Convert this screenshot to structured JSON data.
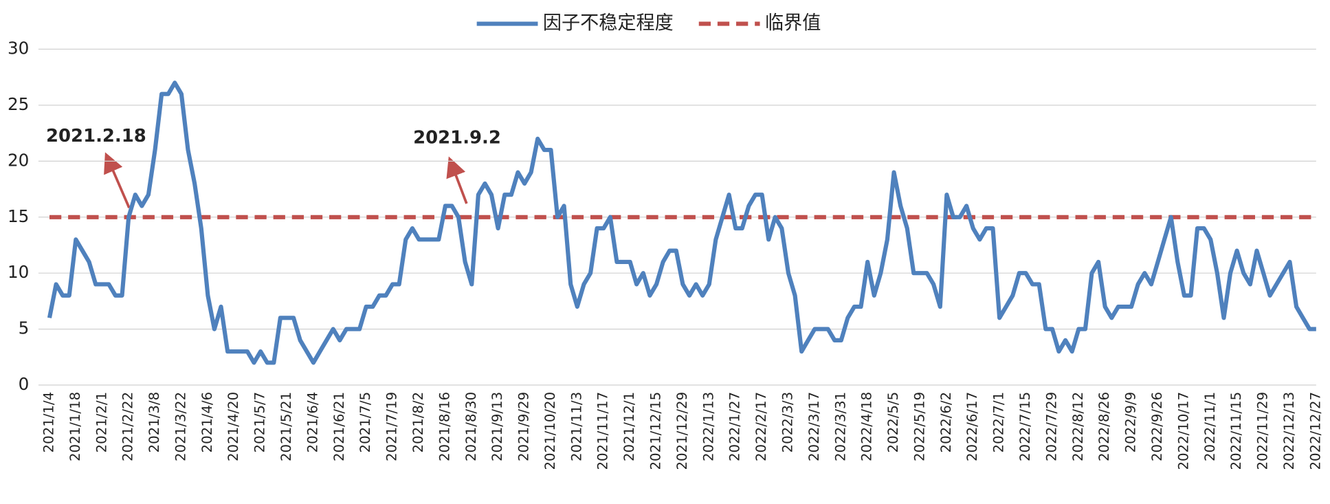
{
  "chart_data": {
    "type": "line",
    "categories": [
      "2021/1/4",
      null,
      null,
      null,
      "2021/1/18",
      null,
      null,
      null,
      "2021/2/1",
      null,
      null,
      null,
      "2021/2/22",
      null,
      null,
      null,
      "2021/3/8",
      null,
      null,
      null,
      "2021/3/22",
      null,
      null,
      null,
      "2021/4/6",
      null,
      null,
      null,
      "2021/4/20",
      null,
      null,
      null,
      "2021/5/7",
      null,
      null,
      null,
      "2021/5/21",
      null,
      null,
      null,
      "2021/6/4",
      null,
      null,
      null,
      "2021/6/21",
      null,
      null,
      null,
      "2021/7/5",
      null,
      null,
      null,
      "2021/7/19",
      null,
      null,
      null,
      "2021/8/2",
      null,
      null,
      null,
      "2021/8/16",
      null,
      null,
      null,
      "2021/8/30",
      null,
      null,
      null,
      "2021/9/13",
      null,
      null,
      null,
      "2021/9/29",
      null,
      null,
      null,
      "2021/10/20",
      null,
      null,
      null,
      "2021/11/3",
      null,
      null,
      null,
      "2021/11/17",
      null,
      null,
      null,
      "2021/12/1",
      null,
      null,
      null,
      "2021/12/15",
      null,
      null,
      null,
      "2021/12/29",
      null,
      null,
      null,
      "2022/1/13",
      null,
      null,
      null,
      "2022/1/27",
      null,
      null,
      null,
      "2022/2/17",
      null,
      null,
      null,
      "2022/3/3",
      null,
      null,
      null,
      "2022/3/17",
      null,
      null,
      null,
      "2022/3/31",
      null,
      null,
      null,
      "2022/4/18",
      null,
      null,
      null,
      "2022/5/5",
      null,
      null,
      null,
      "2022/5/19",
      null,
      null,
      null,
      "2022/6/2",
      null,
      null,
      null,
      "2022/6/17",
      null,
      null,
      null,
      "2022/7/1",
      null,
      null,
      null,
      "2022/7/15",
      null,
      null,
      null,
      "2022/7/29",
      null,
      null,
      null,
      "2022/8/12",
      null,
      null,
      null,
      "2022/8/26",
      null,
      null,
      null,
      "2022/9/9",
      null,
      null,
      null,
      "2022/9/26",
      null,
      null,
      null,
      "2022/10/17",
      null,
      null,
      null,
      "2022/11/1",
      null,
      null,
      null,
      "2022/11/15",
      null,
      null,
      null,
      "2022/11/29",
      null,
      null,
      null,
      "2022/12/13",
      null,
      null,
      null,
      "2022/12/27"
    ],
    "series": [
      {
        "name": "因子不稳定程度",
        "color": "#4f81bd",
        "values": [
          6,
          9,
          8,
          8,
          13,
          12,
          11,
          9,
          9,
          9,
          8,
          8,
          15,
          17,
          16,
          17,
          21,
          26,
          26,
          27,
          26,
          21,
          18,
          14,
          8,
          5,
          7,
          3,
          3,
          3,
          3,
          2,
          3,
          2,
          2,
          6,
          6,
          6,
          4,
          3,
          2,
          3,
          4,
          5,
          4,
          5,
          5,
          5,
          7,
          7,
          8,
          8,
          9,
          9,
          13,
          14,
          13,
          13,
          13,
          13,
          16,
          16,
          15,
          11,
          9,
          17,
          18,
          17,
          14,
          17,
          17,
          19,
          18,
          19,
          22,
          21,
          21,
          15,
          16,
          9,
          7,
          9,
          10,
          14,
          14,
          15,
          11,
          11,
          11,
          9,
          10,
          8,
          9,
          11,
          12,
          12,
          9,
          8,
          9,
          8,
          9,
          13,
          15,
          17,
          14,
          14,
          16,
          17,
          17,
          13,
          15,
          14,
          10,
          8,
          3,
          4,
          5,
          5,
          5,
          4,
          4,
          6,
          7,
          7,
          11,
          8,
          10,
          13,
          19,
          16,
          14,
          10,
          10,
          10,
          9,
          7,
          17,
          15,
          15,
          16,
          14,
          13,
          14,
          14,
          6,
          7,
          8,
          10,
          10,
          9,
          9,
          5,
          5,
          3,
          4,
          3,
          5,
          5,
          10,
          11,
          7,
          6,
          7,
          7,
          7,
          9,
          10,
          9,
          11,
          13,
          15,
          11,
          8,
          8,
          14,
          14,
          13,
          10,
          6,
          10,
          12,
          10,
          9,
          12,
          10,
          8,
          9,
          10,
          11,
          7,
          6,
          5,
          5
        ]
      }
    ],
    "reference_lines": [
      {
        "name": "临界值",
        "value": 15,
        "color": "#c0504d",
        "dashed": true
      }
    ],
    "annotations": [
      {
        "text": "2021.2.18"
      },
      {
        "text": "2021.9.2"
      }
    ],
    "ylim": [
      0,
      30
    ],
    "yticks": [
      0,
      5,
      10,
      15,
      20,
      25,
      30
    ],
    "grid": true,
    "legend": "top"
  }
}
